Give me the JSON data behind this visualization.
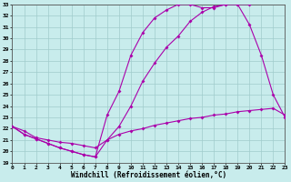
{
  "xlabel": "Windchill (Refroidissement éolien,°C)",
  "xlim": [
    0,
    23
  ],
  "ylim": [
    19,
    33
  ],
  "xticks": [
    0,
    1,
    2,
    3,
    4,
    5,
    6,
    7,
    8,
    9,
    10,
    11,
    12,
    13,
    14,
    15,
    16,
    17,
    18,
    19,
    20,
    21,
    22,
    23
  ],
  "yticks": [
    19,
    20,
    21,
    22,
    23,
    24,
    25,
    26,
    27,
    28,
    29,
    30,
    31,
    32,
    33
  ],
  "bg_color": "#c8ecec",
  "grid_color": "#a0cccc",
  "line_color": "#aa00aa",
  "line1_x": [
    0,
    1,
    2,
    3,
    4,
    5,
    6,
    7,
    8,
    9,
    10,
    11,
    12,
    13,
    14,
    15,
    16,
    17,
    18,
    19,
    20,
    21,
    22,
    23
  ],
  "line1_y": [
    22.2,
    21.5,
    21.1,
    20.7,
    20.3,
    20.0,
    19.7,
    19.5,
    23.2,
    25.3,
    28.5,
    30.5,
    31.8,
    32.5,
    33.0,
    33.0,
    32.7,
    32.7,
    33.0,
    33.0,
    31.2,
    28.5,
    25.0,
    23.0
  ],
  "line2_x": [
    0,
    1,
    2,
    3,
    4,
    5,
    6,
    7,
    8,
    9,
    10,
    11,
    12,
    13,
    14,
    15,
    16,
    17,
    18,
    19,
    20
  ],
  "line2_y": [
    22.2,
    21.5,
    21.1,
    20.7,
    20.3,
    20.0,
    19.7,
    19.5,
    21.0,
    22.2,
    24.0,
    26.2,
    27.8,
    29.2,
    30.2,
    31.5,
    32.3,
    32.8,
    33.0,
    33.0,
    33.0
  ],
  "line3_x": [
    0,
    1,
    2,
    3,
    4,
    5,
    6,
    7,
    8,
    9,
    10,
    11,
    12,
    13,
    14,
    15,
    16,
    17,
    18,
    19,
    20,
    21,
    22,
    23
  ],
  "line3_y": [
    22.2,
    21.8,
    21.2,
    21.0,
    20.8,
    20.7,
    20.5,
    20.3,
    21.0,
    21.5,
    21.8,
    22.0,
    22.3,
    22.5,
    22.7,
    22.9,
    23.0,
    23.2,
    23.3,
    23.5,
    23.6,
    23.7,
    23.8,
    23.2
  ]
}
